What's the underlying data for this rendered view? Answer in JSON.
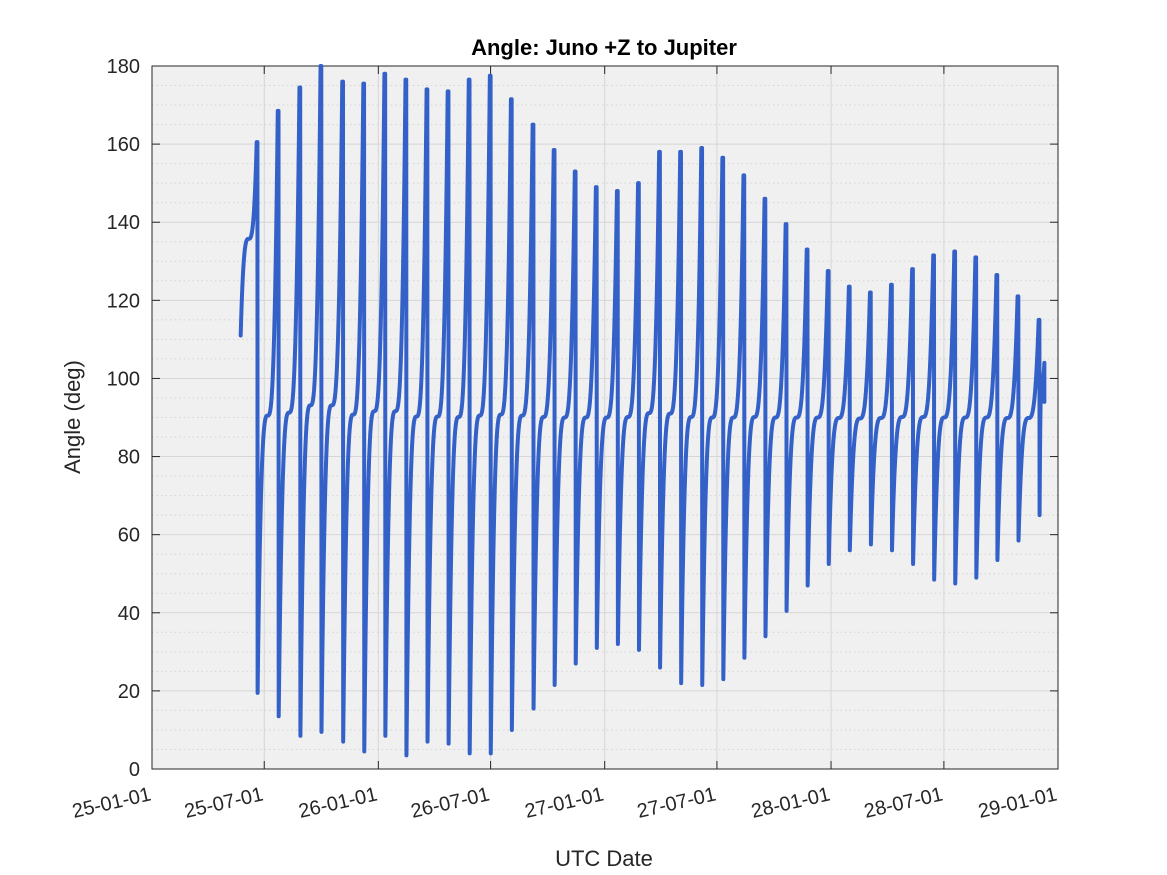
{
  "chart_data": {
    "type": "line",
    "title": "Angle: Juno +Z to Jupiter",
    "xlabel": "UTC Date",
    "ylabel": "Angle (deg)",
    "xlim": [
      "2025-01-01",
      "2029-01-01"
    ],
    "ylim": [
      0,
      180
    ],
    "x_ticks": [
      "2025-01-01",
      "2025-07-01",
      "2026-01-01",
      "2026-07-01",
      "2027-01-01",
      "2027-07-01",
      "2028-01-01",
      "2028-07-01",
      "2029-01-01"
    ],
    "x_tick_labels": [
      "25-01-01",
      "25-07-01",
      "26-01-01",
      "26-07-01",
      "27-01-01",
      "27-07-01",
      "28-01-01",
      "28-07-01",
      "29-01-01"
    ],
    "y_ticks": [
      0,
      20,
      40,
      60,
      80,
      100,
      120,
      140,
      160,
      180
    ],
    "grid": true,
    "minor_grid": true,
    "legend": "none",
    "colors": {
      "series": "#3461c8",
      "plot_bg": "#f0f0f0",
      "grid": "#d9d9d9",
      "axis": "#262626"
    },
    "series": [
      {
        "start": {
          "date": "2025-05-24",
          "angle": 111
        },
        "end": {
          "date": "2028-12-10",
          "angle": 94
        },
        "spikes": [
          {
            "date": "2025-06-20",
            "min": 19.5,
            "max": 160.5
          },
          {
            "date": "2025-07-24",
            "min": 13.5,
            "max": 168.5
          },
          {
            "date": "2025-08-28",
            "min": 8.5,
            "max": 174.5
          },
          {
            "date": "2025-10-01",
            "min": 9.5,
            "max": 180
          },
          {
            "date": "2025-11-05",
            "min": 7,
            "max": 176
          },
          {
            "date": "2025-12-09",
            "min": 4.5,
            "max": 175.5
          },
          {
            "date": "2026-01-12",
            "min": 8.5,
            "max": 178
          },
          {
            "date": "2026-02-15",
            "min": 3.5,
            "max": 176.5
          },
          {
            "date": "2026-03-21",
            "min": 7,
            "max": 174
          },
          {
            "date": "2026-04-24",
            "min": 6.5,
            "max": 173.5
          },
          {
            "date": "2026-05-28",
            "min": 4,
            "max": 176.5
          },
          {
            "date": "2026-07-01",
            "min": 4,
            "max": 177.5
          },
          {
            "date": "2026-08-04",
            "min": 10,
            "max": 171.5
          },
          {
            "date": "2026-09-08",
            "min": 15.5,
            "max": 165
          },
          {
            "date": "2026-10-12",
            "min": 21.5,
            "max": 158.5
          },
          {
            "date": "2026-11-15",
            "min": 27,
            "max": 153
          },
          {
            "date": "2026-12-19",
            "min": 31,
            "max": 149
          },
          {
            "date": "2027-01-22",
            "min": 32,
            "max": 148
          },
          {
            "date": "2027-02-25",
            "min": 30.5,
            "max": 150
          },
          {
            "date": "2027-03-31",
            "min": 26,
            "max": 158
          },
          {
            "date": "2027-05-04",
            "min": 22,
            "max": 158
          },
          {
            "date": "2027-06-07",
            "min": 21.5,
            "max": 159
          },
          {
            "date": "2027-07-11",
            "min": 23,
            "max": 156.5
          },
          {
            "date": "2027-08-14",
            "min": 28.5,
            "max": 152
          },
          {
            "date": "2027-09-17",
            "min": 34,
            "max": 146
          },
          {
            "date": "2027-10-21",
            "min": 40.5,
            "max": 139.5
          },
          {
            "date": "2027-11-24",
            "min": 47,
            "max": 133
          },
          {
            "date": "2027-12-28",
            "min": 52.5,
            "max": 127.5
          },
          {
            "date": "2028-01-31",
            "min": 56,
            "max": 123.5
          },
          {
            "date": "2028-03-05",
            "min": 57.5,
            "max": 122
          },
          {
            "date": "2028-04-08",
            "min": 56,
            "max": 124
          },
          {
            "date": "2028-05-12",
            "min": 52.5,
            "max": 128
          },
          {
            "date": "2028-06-15",
            "min": 48.5,
            "max": 131.5
          },
          {
            "date": "2028-07-19",
            "min": 47.5,
            "max": 132.5
          },
          {
            "date": "2028-08-22",
            "min": 49,
            "max": 131
          },
          {
            "date": "2028-09-25",
            "min": 53.5,
            "max": 126.5
          },
          {
            "date": "2028-10-29",
            "min": 58.5,
            "max": 121
          },
          {
            "date": "2028-12-02",
            "min": 65,
            "max": 115
          }
        ]
      }
    ]
  }
}
